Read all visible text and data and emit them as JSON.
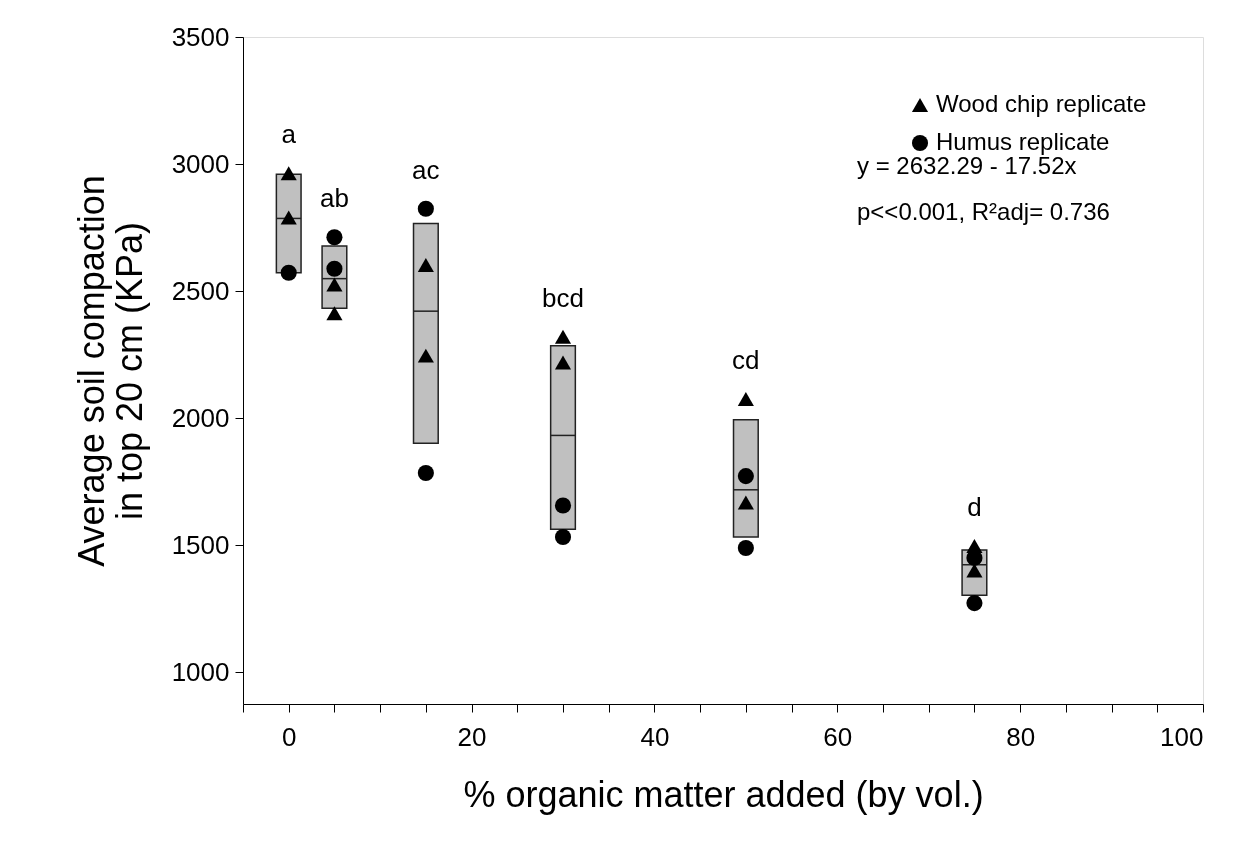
{
  "chart_data": {
    "type": "scatter",
    "xlabel": "% organic matter added (by vol.)",
    "ylabel": "Average soil compaction\nin top 20 cm (KPa)",
    "xlim": [
      -5,
      100
    ],
    "ylim": [
      875,
      3500
    ],
    "xticks": [
      {
        "value": -5,
        "label": null
      },
      0,
      {
        "value": 5,
        "label": null
      },
      {
        "value": 10,
        "label": null
      },
      {
        "value": 15,
        "label": null
      },
      20,
      {
        "value": 25,
        "label": null
      },
      {
        "value": 30,
        "label": null
      },
      {
        "value": 35,
        "label": null
      },
      40,
      {
        "value": 45,
        "label": null
      },
      {
        "value": 50,
        "label": null
      },
      {
        "value": 55,
        "label": null
      },
      60,
      {
        "value": 65,
        "label": null
      },
      {
        "value": 70,
        "label": null
      },
      {
        "value": 75,
        "label": null
      },
      80,
      {
        "value": 85,
        "label": null
      },
      {
        "value": 90,
        "label": null
      },
      {
        "value": 95,
        "label": null
      },
      100
    ],
    "yticks": [
      1000,
      1500,
      2000,
      2500,
      3000,
      3500
    ],
    "grid": false,
    "legend": "top right",
    "series": [
      {
        "type": "box",
        "color": "#c0c0c0",
        "x": [
          0,
          5,
          15,
          30,
          50,
          75
        ],
        "boxes": [
          {
            "low": 2572,
            "q1": 2572,
            "median": 2786,
            "q3": 2960,
            "high": 2960
          },
          {
            "low": 2432,
            "q1": 2432,
            "median": 2549,
            "q3": 2677,
            "high": 2677
          },
          {
            "low": 1901,
            "q1": 1901,
            "median": 2421,
            "q3": 2766,
            "high": 2766
          },
          {
            "low": 1563,
            "q1": 1563,
            "median": 1932,
            "q3": 2285,
            "high": 2285
          },
          {
            "low": 1532,
            "q1": 1532,
            "median": 1718,
            "q3": 1994,
            "high": 1994
          },
          {
            "low": 1303,
            "q1": 1303,
            "median": 1423,
            "q3": 1481,
            "high": 1481
          }
        ]
      },
      {
        "name": "Wood chip replicate",
        "type": "scatter",
        "marker": "triangle",
        "color": "#000000",
        "x": [
          0,
          0,
          5,
          5,
          15,
          15,
          30,
          30,
          50,
          50,
          75,
          75
        ],
        "values": [
          2964,
          2790,
          2526,
          2413,
          2603,
          2246,
          2320,
          2219,
          2075,
          1668,
          1497,
          1400
        ]
      },
      {
        "name": "Humus replicate",
        "type": "scatter",
        "marker": "circle",
        "color": "#000000",
        "x": [
          0,
          5,
          5,
          15,
          15,
          30,
          30,
          50,
          50,
          75,
          75
        ],
        "values": [
          2572,
          2712,
          2588,
          2824,
          1784,
          1656,
          1532,
          1772,
          1489,
          1450,
          1272
        ]
      }
    ],
    "annotations": [
      {
        "text": "a",
        "x": 0,
        "y": 2964
      },
      {
        "text": "ab",
        "x": 5,
        "y": 2712
      },
      {
        "text": "ac",
        "x": 15,
        "y": 2824
      },
      {
        "text": "bcd",
        "x": 30,
        "y": 2320
      },
      {
        "text": "cd",
        "x": 50,
        "y": 2075
      },
      {
        "text": "d",
        "x": 75,
        "y": 1497
      },
      "y = 2632.29 - 17.52x",
      "p<<0.001, R²adj= 0.736"
    ]
  }
}
